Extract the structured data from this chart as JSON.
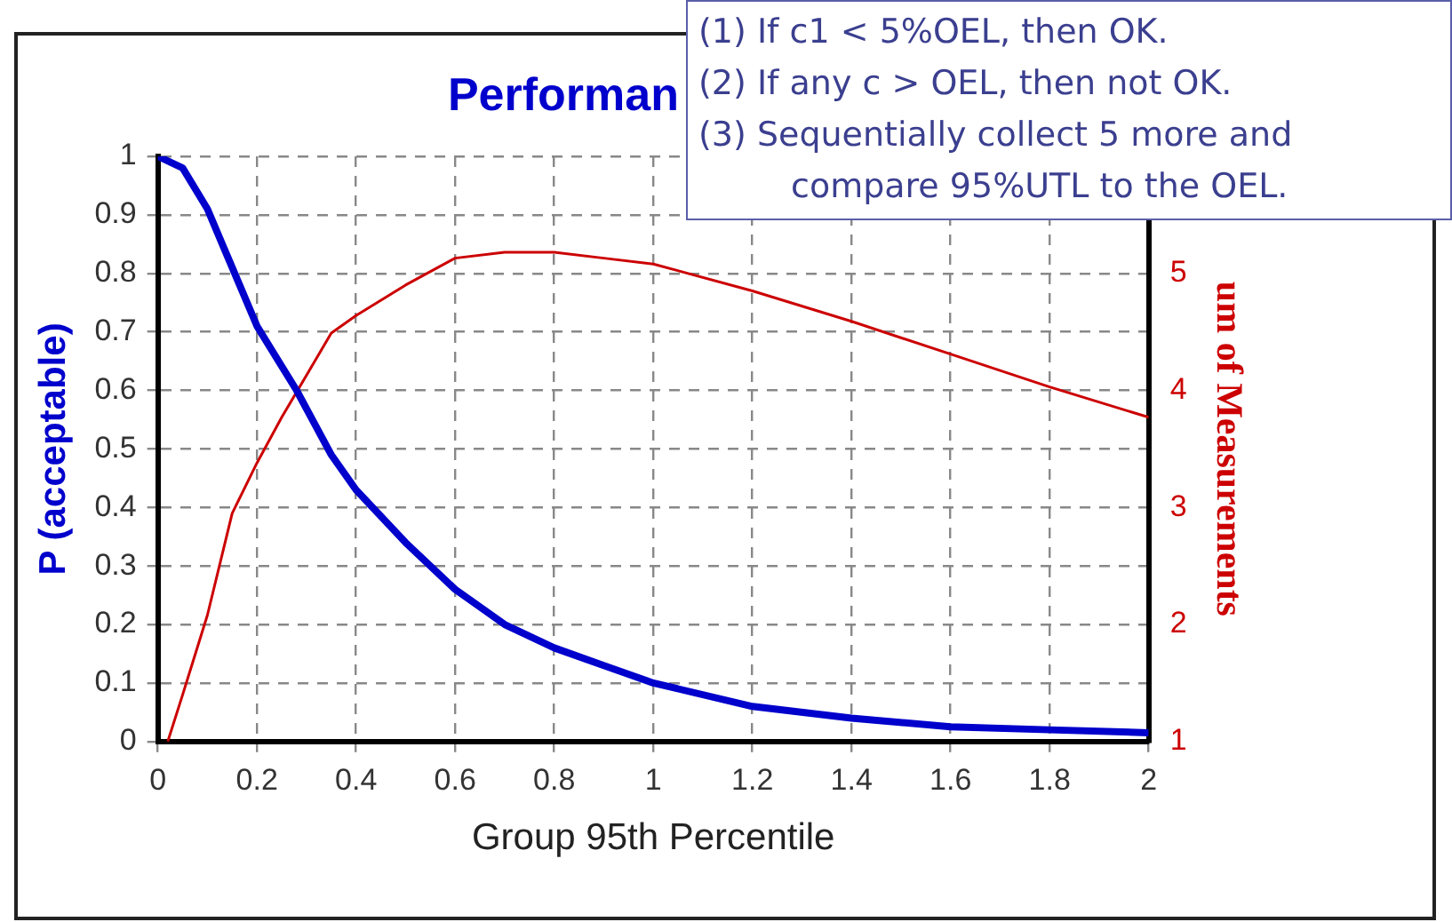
{
  "chart_data": {
    "type": "line",
    "title": "Performan",
    "xlabel": "Group 95th Percentile",
    "ylabel": "P (acceptable)",
    "y2label": "um of Measurements",
    "annotations": [
      "(1) If c1 < 5%OEL, then OK.",
      "(2) If any c > OEL, then not OK.",
      "(3) Sequentially collect 5 more and compare 95%UTL to the OEL."
    ],
    "xlim": [
      0,
      2
    ],
    "xticks": [
      0,
      0.2,
      0.4,
      0.6,
      0.8,
      1,
      1.2,
      1.4,
      1.6,
      1.8,
      2
    ],
    "ylim": [
      0,
      1
    ],
    "yticks": [
      0,
      0.1,
      0.2,
      0.3,
      0.4,
      0.5,
      0.6,
      0.7,
      0.8,
      0.9,
      1
    ],
    "y2lim": [
      1,
      6
    ],
    "y2ticks": [
      1,
      2,
      3,
      4,
      5
    ],
    "grid": true,
    "legend": false,
    "marker": "none",
    "line_style": "solid",
    "series": [
      {
        "color": "#0000cc",
        "x": [
          0,
          0.05,
          0.1,
          0.15,
          0.2,
          0.28,
          0.35,
          0.4,
          0.5,
          0.6,
          0.7,
          0.8,
          0.9,
          1.0,
          1.2,
          1.4,
          1.6,
          1.8,
          2.0
        ],
        "values": [
          1,
          0.98,
          0.91,
          0.81,
          0.71,
          0.6,
          0.49,
          0.43,
          0.34,
          0.26,
          0.2,
          0.16,
          0.13,
          0.1,
          0.06,
          0.04,
          0.025,
          0.02,
          0.015
        ]
      },
      {
        "color": "#cc0000",
        "axis": "y2",
        "x": [
          0.02,
          0.05,
          0.1,
          0.15,
          0.2,
          0.25,
          0.3,
          0.35,
          0.4,
          0.5,
          0.6,
          0.7,
          0.8,
          0.9,
          1.0,
          1.2,
          1.4,
          1.6,
          1.8,
          2.0
        ],
        "values": [
          1.0,
          1.4,
          2.08,
          2.95,
          3.38,
          3.77,
          4.13,
          4.49,
          4.64,
          4.9,
          5.13,
          5.18,
          5.18,
          5.13,
          5.08,
          4.85,
          4.59,
          4.31,
          4.03,
          3.77
        ]
      }
    ]
  }
}
